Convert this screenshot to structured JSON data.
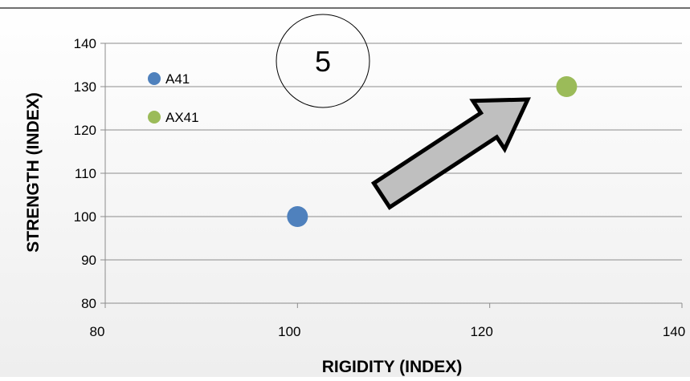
{
  "chart_data": {
    "type": "scatter",
    "xlabel": "RIGIDITY (INDEX)",
    "ylabel": "STRENGTH (INDEX)",
    "xlim": [
      80,
      140
    ],
    "ylim": [
      80,
      140
    ],
    "x_ticks": [
      80,
      100,
      120,
      140
    ],
    "y_ticks": [
      80,
      90,
      100,
      110,
      120,
      130,
      140
    ],
    "grid": "horizontal",
    "legend_position": "top-left",
    "series": [
      {
        "name": "A41",
        "color": "#4f81bd",
        "points": [
          [
            100,
            100
          ]
        ]
      },
      {
        "name": "AX41",
        "color": "#9bbb59",
        "points": [
          [
            128,
            130
          ]
        ]
      }
    ],
    "annotations": {
      "badge_label": "5",
      "arrow": {
        "from": [
          103,
          104
        ],
        "to": [
          127,
          127
        ],
        "fill": "#bfbfbf",
        "stroke": "#000000"
      }
    }
  }
}
